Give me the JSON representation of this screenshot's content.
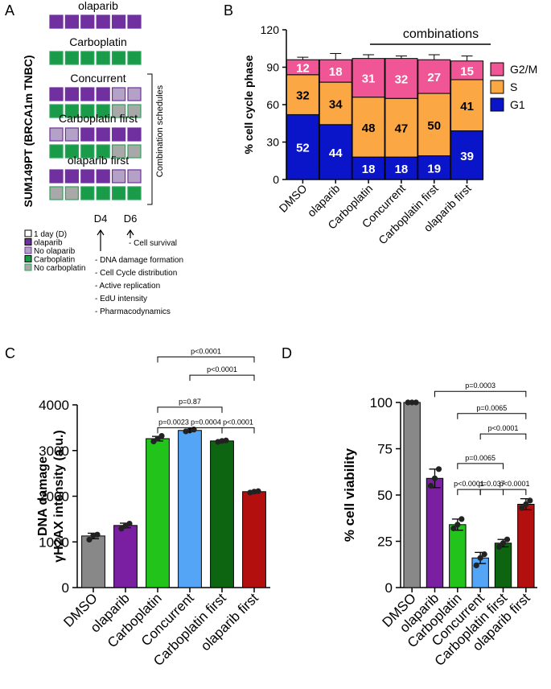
{
  "panel_letters": {
    "a": "A",
    "b": "B",
    "c": "C",
    "d": "D"
  },
  "schedule": {
    "cell_line": "SUM149PT (BRCA1m TNBC)",
    "side_label": "Combination schedules",
    "groups": [
      {
        "name": "olaparib",
        "rows": [
          [
            "P",
            "P",
            "P",
            "P",
            "P",
            "P"
          ]
        ]
      },
      {
        "name": "Carboplatin",
        "rows": [
          [
            "G",
            "G",
            "G",
            "G",
            "G",
            "G"
          ]
        ]
      },
      {
        "name": "Concurrent",
        "rows": [
          [
            "P",
            "P",
            "P",
            "P",
            "p",
            "p"
          ],
          [
            "G",
            "G",
            "G",
            "G",
            "g",
            "g"
          ]
        ]
      },
      {
        "name": "Carboplatin first",
        "rows": [
          [
            "p",
            "p",
            "P",
            "P",
            "P",
            "P"
          ],
          [
            "G",
            "G",
            "G",
            "G",
            "g",
            "g"
          ]
        ]
      },
      {
        "name": "olaparib first",
        "rows": [
          [
            "P",
            "P",
            "P",
            "P",
            "p",
            "p"
          ],
          [
            "g",
            "g",
            "G",
            "G",
            "G",
            "G"
          ]
        ]
      }
    ],
    "day_marks": [
      "D4",
      "D6"
    ],
    "legend": [
      {
        "key": "W",
        "label": "1 day (D)"
      },
      {
        "key": "P",
        "label": "olaparib"
      },
      {
        "key": "p",
        "label": "No olaparib"
      },
      {
        "key": "G",
        "label": "Carboplatin"
      },
      {
        "key": "g",
        "label": "No carboplatin"
      }
    ],
    "d6_readouts": [
      "- Cell survival"
    ],
    "d4_readouts": [
      "- DNA damage formation",
      "- Cell Cycle distribution",
      "- Active replication",
      "- EdU intensity",
      "- Pharmacodynamics"
    ],
    "colors": {
      "P": "#7030a0",
      "p": "#b4a2c6",
      "G": "#1a9b4a",
      "g": "#a8a8a8",
      "olaparib_border": "#7030a0",
      "carbo_border": "#2aa55a"
    }
  },
  "chart_data": [
    {
      "type": "bar",
      "stacked": true,
      "title": "",
      "top_label": "combinations",
      "categories": [
        "DMSO",
        "olaparib",
        "Carboplatin",
        "Concurrent",
        "Carboplatin first",
        "olaparib first"
      ],
      "series": [
        {
          "name": "G1",
          "color": "#0a14c8",
          "values": [
            52,
            44,
            18,
            18,
            19,
            39
          ],
          "errors": [
            2,
            3,
            3,
            1,
            1,
            2
          ]
        },
        {
          "name": "S",
          "color": "#fba744",
          "values": [
            32,
            34,
            48,
            47,
            50,
            41
          ],
          "errors": [
            2,
            2,
            2,
            2,
            3,
            2
          ]
        },
        {
          "name": "G2/M",
          "color": "#f05595",
          "values": [
            12,
            18,
            31,
            32,
            27,
            15
          ],
          "errors": [
            2,
            5,
            3,
            2,
            4,
            4
          ]
        }
      ],
      "segment_labels": [
        [
          "52",
          "44",
          "18",
          "18",
          "19",
          "39"
        ],
        [
          "32",
          "34",
          "48",
          "47",
          "50",
          "41"
        ],
        [
          "12",
          "18",
          "31",
          "32",
          "27",
          "15"
        ]
      ],
      "xlabel": "",
      "ylabel": "% cell cycle phase",
      "ylim": [
        0,
        120
      ],
      "yticks": [
        "0",
        "30",
        "60",
        "90",
        "120"
      ],
      "legend": [
        "G2/M",
        "S",
        "G1"
      ]
    },
    {
      "type": "bar",
      "title": "",
      "categories": [
        "DMSO",
        "olaparib",
        "Carboplatin",
        "Concurrent",
        "Carboplatin first",
        "olaparib first"
      ],
      "values": [
        1130,
        1360,
        3260,
        3440,
        3210,
        2100
      ],
      "errors": [
        60,
        50,
        50,
        25,
        20,
        20
      ],
      "points": [
        [
          1050,
          1140,
          1160
        ],
        [
          1290,
          1350,
          1400
        ],
        [
          3200,
          3260,
          3320
        ],
        [
          3420,
          3440,
          3460
        ],
        [
          3190,
          3210,
          3220
        ],
        [
          2080,
          2100,
          2110
        ]
      ],
      "colors": [
        "#888888",
        "#7b1fa2",
        "#22c41b",
        "#55a5f7",
        "#0d6512",
        "#b40f0f"
      ],
      "xlabel": "",
      "ylabel": "DNA damage",
      "ylabel2": "γH2AX intensity (a.u.)",
      "ylim": [
        0,
        4000
      ],
      "yticks": [
        "0",
        "1000",
        "2000",
        "3000",
        "4000"
      ],
      "comparisons": [
        {
          "from": 2,
          "to": 3,
          "label": "p=0.0023",
          "y": 3500
        },
        {
          "from": 3,
          "to": 4,
          "label": "p=0.0004",
          "y": 3500
        },
        {
          "from": 4,
          "to": 5,
          "label": "p<0.0001",
          "y": 3500
        },
        {
          "from": 2,
          "to": 4,
          "label": "p=0.87",
          "y": 3950
        },
        {
          "from": 3,
          "to": 5,
          "label": "p<0.0001",
          "y": 4650
        },
        {
          "from": 2,
          "to": 5,
          "label": "p<0.0001",
          "y": 5050
        }
      ]
    },
    {
      "type": "bar",
      "title": "",
      "categories": [
        "DMSO",
        "olaparib",
        "Carboplatin",
        "Concurrent",
        "Carboplatin first",
        "olaparib first"
      ],
      "values": [
        100,
        59,
        34,
        16,
        24,
        45
      ],
      "errors": [
        0.5,
        5,
        3,
        3,
        2,
        3
      ],
      "points": [
        [
          100,
          100,
          100
        ],
        [
          55,
          59,
          64
        ],
        [
          32,
          34,
          37
        ],
        [
          12,
          16,
          18
        ],
        [
          22,
          24,
          26
        ],
        [
          43,
          45,
          47
        ]
      ],
      "colors": [
        "#888888",
        "#7b1fa2",
        "#22c41b",
        "#55a5f7",
        "#0d6512",
        "#b40f0f"
      ],
      "xlabel": "",
      "ylabel": "% cell viability",
      "ylim": [
        0,
        100
      ],
      "yticks": [
        "0",
        "25",
        "50",
        "75",
        "100"
      ],
      "comparisons": [
        {
          "from": 2,
          "to": 3,
          "label": "p<0.0001",
          "y": 53
        },
        {
          "from": 3,
          "to": 4,
          "label": "p=0.037",
          "y": 53
        },
        {
          "from": 4,
          "to": 5,
          "label": "p<0.0001",
          "y": 53
        },
        {
          "from": 2,
          "to": 4,
          "label": "p=0.0065",
          "y": 67
        },
        {
          "from": 3,
          "to": 5,
          "label": "p<0.0001",
          "y": 83
        },
        {
          "from": 2,
          "to": 5,
          "label": "p=0.0065",
          "y": 94
        },
        {
          "from": 1,
          "to": 5,
          "label": "p=0.0003",
          "y": 106
        }
      ]
    }
  ]
}
